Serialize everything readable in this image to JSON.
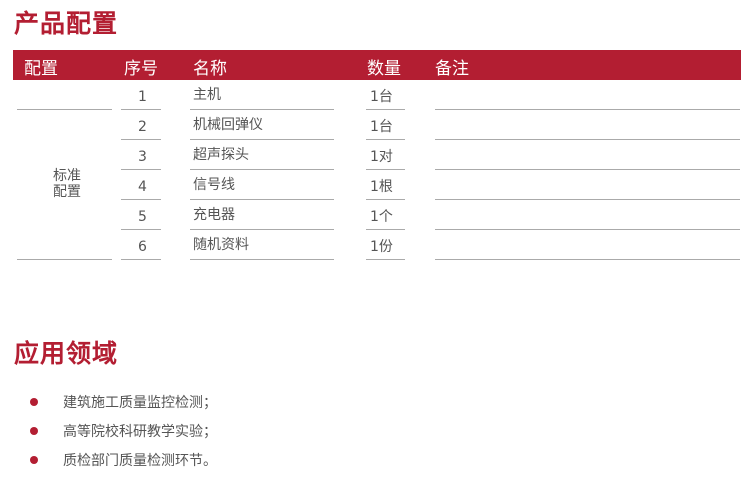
{
  "config_section": {
    "title": "产品配置",
    "headers": [
      "配置",
      "序号",
      "名称",
      "数量",
      "备注"
    ],
    "group_label_line1": "标准",
    "group_label_line2": "配置",
    "rows": [
      {
        "seq": "1",
        "name": "主机",
        "qty": "1台",
        "note": ""
      },
      {
        "seq": "2",
        "name": "机械回弹仪",
        "qty": "1台",
        "note": ""
      },
      {
        "seq": "3",
        "name": "超声探头",
        "qty": "1对",
        "note": ""
      },
      {
        "seq": "4",
        "name": "信号线",
        "qty": "1根",
        "note": ""
      },
      {
        "seq": "5",
        "name": "充电器",
        "qty": "1个",
        "note": ""
      },
      {
        "seq": "6",
        "name": "随机资料",
        "qty": "1份",
        "note": ""
      }
    ]
  },
  "application_section": {
    "title": "应用领域",
    "items": [
      "建筑施工质量监控检测；",
      "高等院校科研教学实验；",
      "质检部门质量检测环节。"
    ]
  },
  "colors": {
    "accent": "#b31e32",
    "text": "#555555"
  }
}
